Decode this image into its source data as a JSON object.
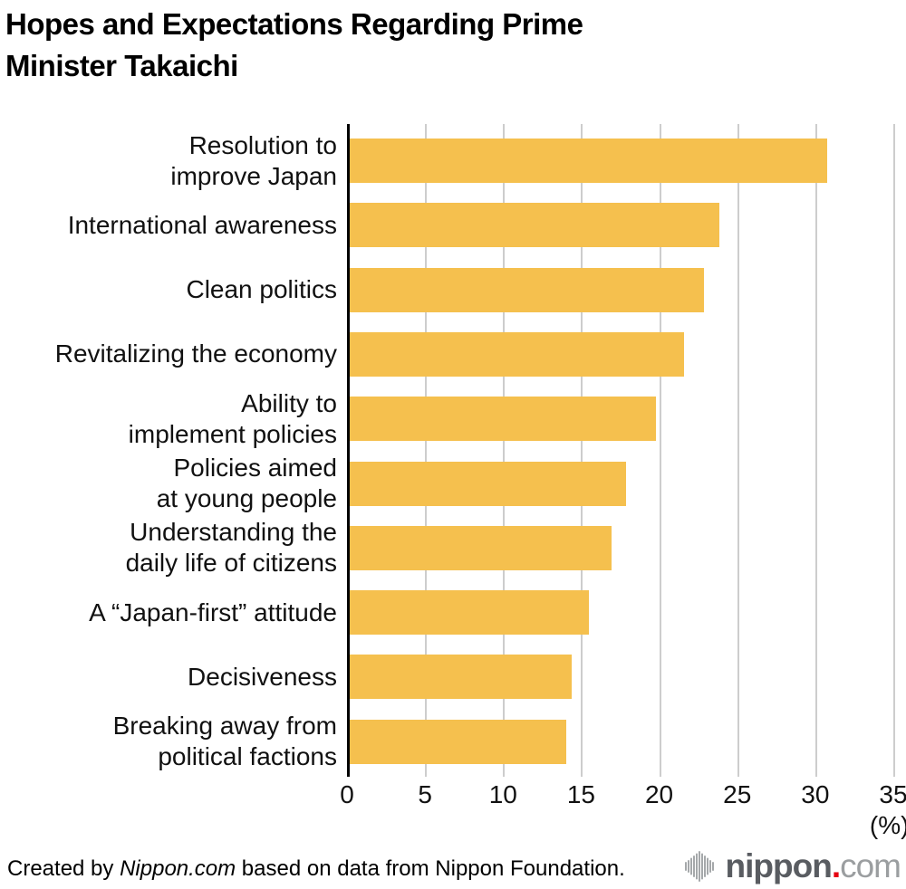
{
  "title_lines": [
    "Hopes and Expectations Regarding Prime",
    "Minister Takaichi"
  ],
  "chart_data": {
    "type": "bar",
    "orientation": "horizontal",
    "title": "Hopes and Expectations Regarding Prime Minister Takaichi",
    "categories": [
      [
        "Resolution to",
        "improve Japan"
      ],
      [
        "International awareness"
      ],
      [
        "Clean politics"
      ],
      [
        "Revitalizing the economy"
      ],
      [
        "Ability to",
        "implement policies"
      ],
      [
        "Policies aimed",
        "at young people"
      ],
      [
        "Understanding the",
        "daily life of citizens"
      ],
      [
        "A “Japan-first” attitude"
      ],
      [
        "Decisiveness"
      ],
      [
        "Breaking away from",
        "political factions"
      ]
    ],
    "values": [
      30.6,
      23.7,
      22.7,
      21.4,
      19.6,
      17.7,
      16.8,
      15.3,
      14.2,
      13.9
    ],
    "xlim": [
      0,
      35
    ],
    "xticks": [
      0,
      5,
      10,
      15,
      20,
      25,
      30,
      35
    ],
    "xlabel": "(%)",
    "grid": true,
    "legend": "none"
  },
  "colors": {
    "bar": "#f5c04e",
    "grid": "#cdcdcd",
    "axis": "#000000",
    "text": "#111111",
    "logo_icon_gray": "#a5a8aa",
    "logo_dark_gray": "#595c61",
    "logo_light_gray": "#9b9ea0",
    "logo_red": "#e60012"
  },
  "footer": {
    "credit_prefix": "Created by ",
    "credit_source_name": "Nippon.com",
    "credit_suffix": " based on data from Nippon Foundation.",
    "logo_name": "nippon",
    "logo_dot": ".",
    "logo_tld": "com"
  }
}
